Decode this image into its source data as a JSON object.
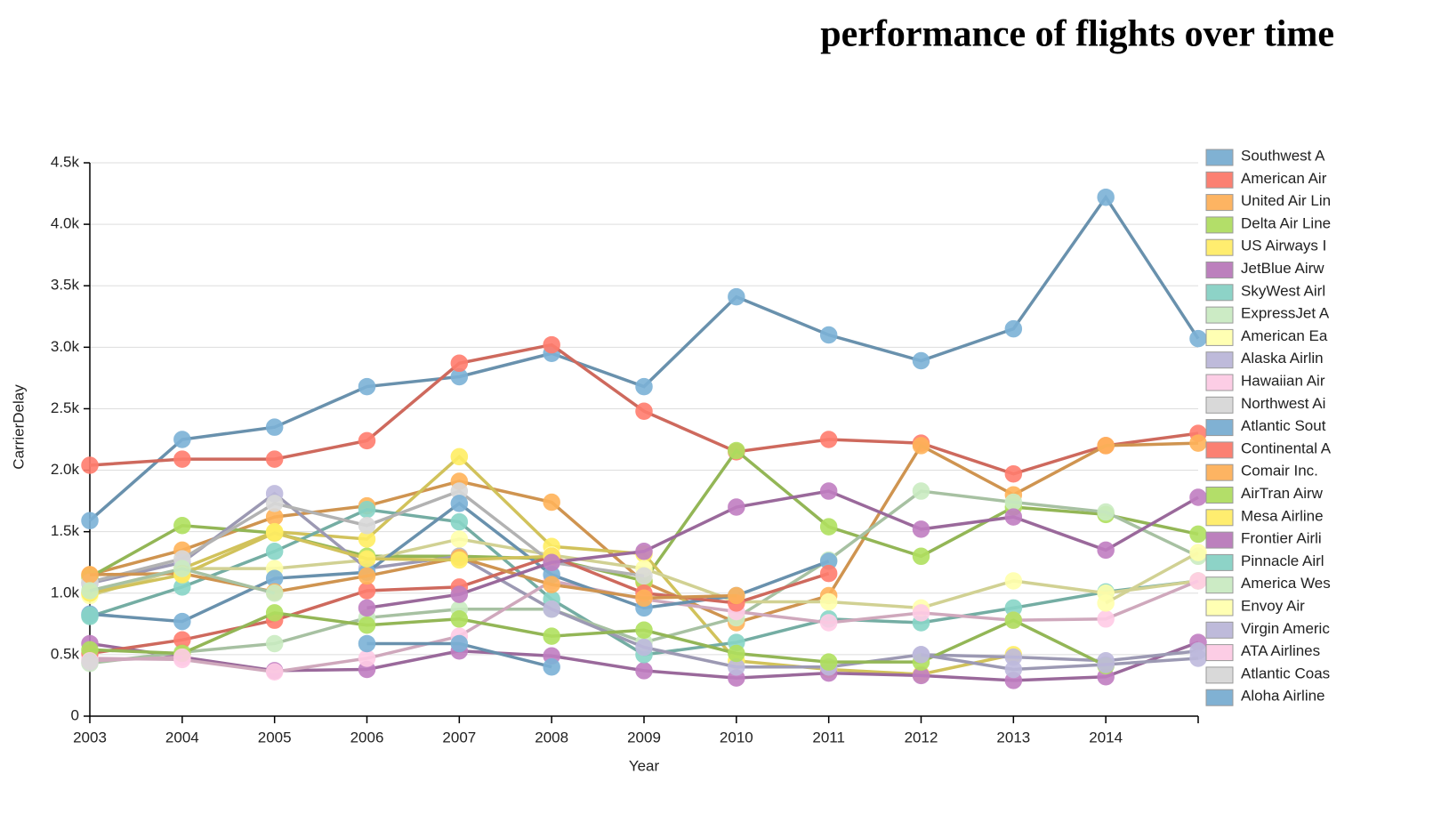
{
  "chart_data": {
    "type": "line",
    "title": "performance of flights over time",
    "x_label": "Year",
    "y_label": "CarrierDelay",
    "categories": [
      "2003",
      "2004",
      "2005",
      "2006",
      "2007",
      "2008",
      "2009",
      "2010",
      "2011",
      "2012",
      "2013",
      "2014",
      null
    ],
    "ylim": [
      0,
      4500
    ],
    "yticks": [
      0,
      {
        "value": 500,
        "label": "0.5k"
      },
      {
        "value": 1000,
        "label": "1.0k"
      },
      {
        "value": 1500,
        "label": "1.5k"
      },
      {
        "value": 2000,
        "label": "2.0k"
      },
      {
        "value": 2500,
        "label": "2.5k"
      },
      {
        "value": 3000,
        "label": "3.0k"
      },
      {
        "value": 3500,
        "label": "3.5k"
      },
      {
        "value": 4000,
        "label": "4.0k"
      },
      {
        "value": 4500,
        "label": "4.5k"
      }
    ],
    "grid": true,
    "legend": "right",
    "series": [
      {
        "name": "Southwest A",
        "color": "#80b1d3",
        "values": [
          1590,
          2250,
          2350,
          2680,
          2760,
          2950,
          2680,
          3410,
          3100,
          2890,
          3150,
          4220,
          3070
        ]
      },
      {
        "name": "American Air",
        "color": "#fb8072",
        "values": [
          2040,
          2090,
          2090,
          2240,
          2870,
          3020,
          2480,
          2150,
          2250,
          2220,
          1970,
          2200,
          2300
        ]
      },
      {
        "name": "United Air Lin",
        "color": "#fdb462",
        "values": [
          1150,
          1350,
          1620,
          1710,
          1910,
          1740,
          1090,
          760,
          980,
          2200,
          1800,
          2200,
          2220
        ]
      },
      {
        "name": "Delta Air Line",
        "color": "#b3de69",
        "values": [
          1130,
          1550,
          1490,
          1300,
          1300,
          1280,
          1100,
          2160,
          1540,
          1300,
          1700,
          1640,
          1480
        ]
      },
      {
        "name": "US Airways I",
        "color": "#ffed6f",
        "values": [
          1000,
          1200,
          1500,
          1440,
          2110,
          1380,
          1320,
          450,
          380,
          340,
          500,
          null,
          null
        ]
      },
      {
        "name": "JetBlue Airw",
        "color": "#bc80bd",
        "values": [
          590,
          480,
          370,
          380,
          530,
          490,
          370,
          310,
          350,
          330,
          290,
          320,
          600
        ]
      },
      {
        "name": "SkyWest Airl",
        "color": "#8dd3c7",
        "values": [
          810,
          1050,
          1340,
          1680,
          1580,
          950,
          500,
          600,
          790,
          760,
          880,
          1010,
          1100
        ]
      },
      {
        "name": "ExpressJet A",
        "color": "#ccebc5",
        "values": [
          430,
          520,
          590,
          800,
          870,
          870,
          600,
          800,
          1270,
          1830,
          1740,
          1660,
          1300
        ]
      },
      {
        "name": "American Ea",
        "color": "#ffffb3",
        "values": [
          980,
          1200,
          1200,
          1270,
          1440,
          1310,
          1200,
          930,
          930,
          880,
          1100,
          1000,
          1100
        ]
      },
      {
        "name": "Alaska Airlin",
        "color": "#bebada",
        "values": [
          1080,
          1250,
          1810,
          1200,
          1300,
          870,
          560,
          400,
          400,
          500,
          480,
          450,
          530
        ]
      },
      {
        "name": "Hawaiian Air",
        "color": "#fccde5",
        "values": [
          470,
          460,
          360,
          470,
          650,
          1100,
          950,
          850,
          760,
          840,
          780,
          790,
          1100
        ]
      },
      {
        "name": "Northwest Ai",
        "color": "#d9d9d9",
        "values": [
          1090,
          1280,
          1730,
          1550,
          1830,
          1250,
          1140,
          null,
          null,
          null,
          null,
          null,
          null
        ]
      },
      {
        "name": "Atlantic Sout",
        "color": "#80b1d3",
        "values": [
          830,
          770,
          1120,
          1170,
          1730,
          1150,
          880,
          980,
          1260,
          null,
          null,
          null,
          null
        ]
      },
      {
        "name": "Continental A",
        "color": "#fb8072",
        "values": [
          510,
          620,
          780,
          1020,
          1050,
          1300,
          1000,
          920,
          1160,
          null,
          null,
          null,
          null
        ]
      },
      {
        "name": "Comair Inc.",
        "color": "#fdb462",
        "values": [
          1150,
          1160,
          1010,
          1140,
          1290,
          1070,
          960,
          980,
          null,
          null,
          null,
          null,
          null
        ]
      },
      {
        "name": "AirTran Airw",
        "color": "#b3de69",
        "values": [
          540,
          510,
          840,
          740,
          790,
          650,
          700,
          510,
          440,
          440,
          780,
          410,
          null
        ]
      },
      {
        "name": "Mesa Airline",
        "color": "#ffed6f",
        "values": [
          1000,
          1150,
          1490,
          1280,
          1270,
          1300,
          null,
          null,
          null,
          null,
          null,
          null,
          null
        ]
      },
      {
        "name": "Frontier Airli",
        "color": "#bc80bd",
        "values": [
          null,
          null,
          null,
          880,
          990,
          1250,
          1340,
          1700,
          1830,
          1520,
          1620,
          1350,
          1780
        ]
      },
      {
        "name": "Pinnacle Airl",
        "color": "#8dd3c7",
        "values": [
          820,
          null,
          null,
          null,
          null,
          null,
          null,
          null,
          null,
          null,
          null,
          null,
          null
        ]
      },
      {
        "name": "America Wes",
        "color": "#ccebc5",
        "values": [
          1020,
          1200,
          1000,
          null,
          null,
          null,
          null,
          null,
          null,
          null,
          null,
          null,
          null
        ]
      },
      {
        "name": "Envoy Air",
        "color": "#ffffb3",
        "values": [
          null,
          null,
          null,
          null,
          null,
          null,
          null,
          null,
          null,
          null,
          null,
          920,
          1330
        ]
      },
      {
        "name": "Virgin Americ",
        "color": "#bebada",
        "values": [
          null,
          null,
          null,
          null,
          null,
          null,
          null,
          null,
          null,
          500,
          380,
          420,
          470
        ]
      },
      {
        "name": "ATA Airlines",
        "color": "#fccde5",
        "values": [
          450,
          480,
          null,
          null,
          null,
          null,
          null,
          null,
          null,
          null,
          null,
          null,
          null
        ]
      },
      {
        "name": "Atlantic Coas",
        "color": "#d9d9d9",
        "values": [
          440,
          null,
          null,
          null,
          null,
          null,
          null,
          null,
          null,
          null,
          null,
          null,
          null
        ]
      },
      {
        "name": "Aloha Airline",
        "color": "#80b1d3",
        "values": [
          null,
          null,
          null,
          590,
          590,
          400,
          null,
          null,
          null,
          null,
          null,
          null,
          null
        ]
      }
    ]
  }
}
